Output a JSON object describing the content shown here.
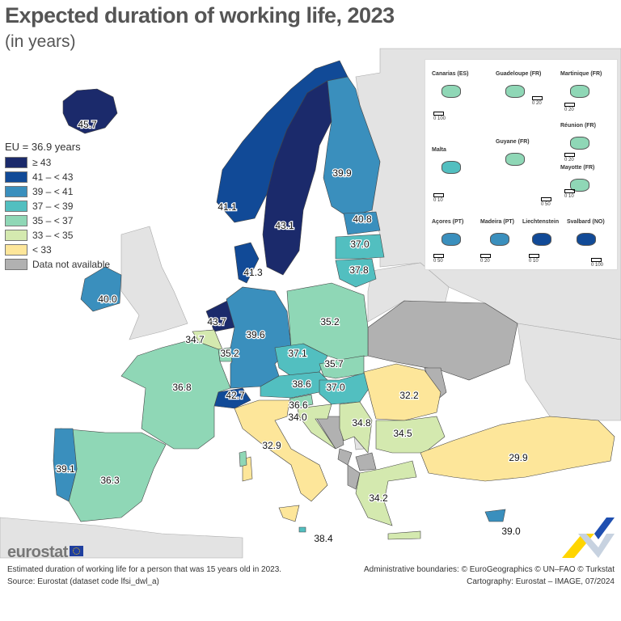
{
  "title": "Expected duration of working life, 2023",
  "subtitle": "(in years)",
  "legend": {
    "title": "EU = 36.9 years",
    "classes": [
      {
        "label": "≥ 43",
        "color": "#1b2a6b"
      },
      {
        "label": "41 – < 43",
        "color": "#114a97"
      },
      {
        "label": "39 – < 41",
        "color": "#3a8fbd"
      },
      {
        "label": "37 – < 39",
        "color": "#52bfc0"
      },
      {
        "label": "35 – < 37",
        "color": "#8fd7b6"
      },
      {
        "label": "33 – < 35",
        "color": "#d4e9af"
      },
      {
        "label": "< 33",
        "color": "#fde69a"
      },
      {
        "label": "Data not available",
        "color": "#b1b1b1"
      }
    ]
  },
  "map": {
    "values": [
      {
        "value": "45.7",
        "class": 0
      },
      {
        "value": "41.1",
        "class": 1
      },
      {
        "value": "43.1",
        "class": 0
      },
      {
        "value": "39.9",
        "class": 2
      },
      {
        "value": "40.8",
        "class": 2
      },
      {
        "value": "37.0",
        "class": 3
      },
      {
        "value": "37.8",
        "class": 3
      },
      {
        "value": "41.3",
        "class": 1
      },
      {
        "value": "40.0",
        "class": 2
      },
      {
        "value": "43.7",
        "class": 0
      },
      {
        "value": "34.7",
        "class": 5
      },
      {
        "value": "35.2",
        "class": 4
      },
      {
        "value": "39.6",
        "class": 2
      },
      {
        "value": "35.2",
        "class": 4
      },
      {
        "value": "37.1",
        "class": 3
      },
      {
        "value": "35.7",
        "class": 4
      },
      {
        "value": "38.6",
        "class": 3
      },
      {
        "value": "37.0",
        "class": 3
      },
      {
        "value": "42.7",
        "class": 1
      },
      {
        "value": "36.8",
        "class": 4
      },
      {
        "value": "36.3",
        "class": 4
      },
      {
        "value": "39.1",
        "class": 2
      },
      {
        "value": "32.9",
        "class": 6
      },
      {
        "value": "36.6",
        "class": 4
      },
      {
        "value": "34.0",
        "class": 5
      },
      {
        "value": "34.8",
        "class": 5
      },
      {
        "value": "32.2",
        "class": 6
      },
      {
        "value": "34.5",
        "class": 5
      },
      {
        "value": "34.2",
        "class": 5
      },
      {
        "value": "29.9",
        "class": 6
      },
      {
        "value": "39.0",
        "class": 2
      },
      {
        "value": "38.4",
        "class": 3
      }
    ]
  },
  "insets": [
    {
      "title": "Canarias (ES)",
      "scale": "0  100"
    },
    {
      "title": "Guadeloupe (FR)",
      "scale": "0  20"
    },
    {
      "title": "Martinique (FR)",
      "scale": "0  20"
    },
    {
      "title": "Réunion (FR)",
      "scale": "0  20"
    },
    {
      "title": "Malta",
      "scale": "0  10"
    },
    {
      "title": "Guyane (FR)",
      "scale": "0  50"
    },
    {
      "title": "Mayotte (FR)",
      "scale": "0  10"
    },
    {
      "title": "Açores (PT)",
      "scale": "0  50"
    },
    {
      "title": "Madeira (PT)",
      "scale": "0  20"
    },
    {
      "title": "Liechtenstein",
      "scale": "0  10"
    },
    {
      "title": "Svalbard (NO)",
      "scale": "0 100"
    }
  ],
  "logo": "eurostat",
  "footer": {
    "note": "Estimated duration of working life for a person that was 15 years old in 2023.",
    "source": "Source: Eurostat (dataset code lfsi_dwl_a)",
    "boundaries": "Administrative boundaries: © EuroGeographics © UN–FAO © Turkstat",
    "cartography": "Cartography: Eurostat – IMAGE, 07/2024"
  }
}
